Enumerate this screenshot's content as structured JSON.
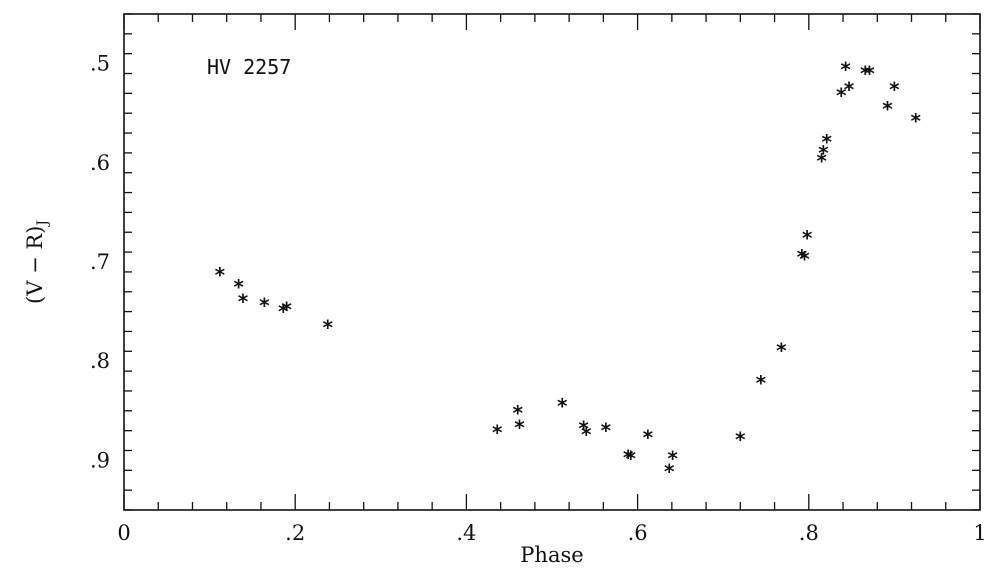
{
  "chart_data": {
    "type": "scatter",
    "annotation": "HV 2257",
    "xlabel": "Phase",
    "ylabel_main": "(V − R)",
    "ylabel_sub": "J",
    "xlim": [
      0,
      1
    ],
    "ylim": [
      0.95,
      0.45
    ],
    "y_inverted": true,
    "x_major_ticks": [
      0,
      0.2,
      0.4,
      0.6,
      0.8,
      1.0
    ],
    "x_tick_labels": [
      "0",
      ".2",
      ".4",
      ".6",
      ".8",
      "1"
    ],
    "y_major_ticks": [
      0.5,
      0.6,
      0.7,
      0.8,
      0.9
    ],
    "y_tick_labels": [
      ".5",
      ".6",
      ".7",
      ".8",
      ".9"
    ],
    "x_minor_step": 0.04,
    "y_minor_step": 0.02,
    "marker": "asterisk",
    "grid": false,
    "series": [
      {
        "x": [
          0.112,
          0.134,
          0.139,
          0.164,
          0.186,
          0.19,
          0.238,
          0.436,
          0.46,
          0.462,
          0.512,
          0.537,
          0.54,
          0.563,
          0.589,
          0.592,
          0.612,
          0.637,
          0.641,
          0.72,
          0.744,
          0.768,
          0.792,
          0.795,
          0.798,
          0.815,
          0.817,
          0.821,
          0.838,
          0.843,
          0.847,
          0.866,
          0.871,
          0.892,
          0.9,
          0.925
        ],
        "y": [
          0.713,
          0.725,
          0.74,
          0.744,
          0.75,
          0.748,
          0.766,
          0.872,
          0.852,
          0.867,
          0.845,
          0.868,
          0.874,
          0.87,
          0.897,
          0.898,
          0.877,
          0.911,
          0.898,
          0.879,
          0.822,
          0.789,
          0.695,
          0.697,
          0.676,
          0.598,
          0.59,
          0.579,
          0.532,
          0.506,
          0.526,
          0.51,
          0.51,
          0.546,
          0.526,
          0.558
        ]
      }
    ]
  }
}
